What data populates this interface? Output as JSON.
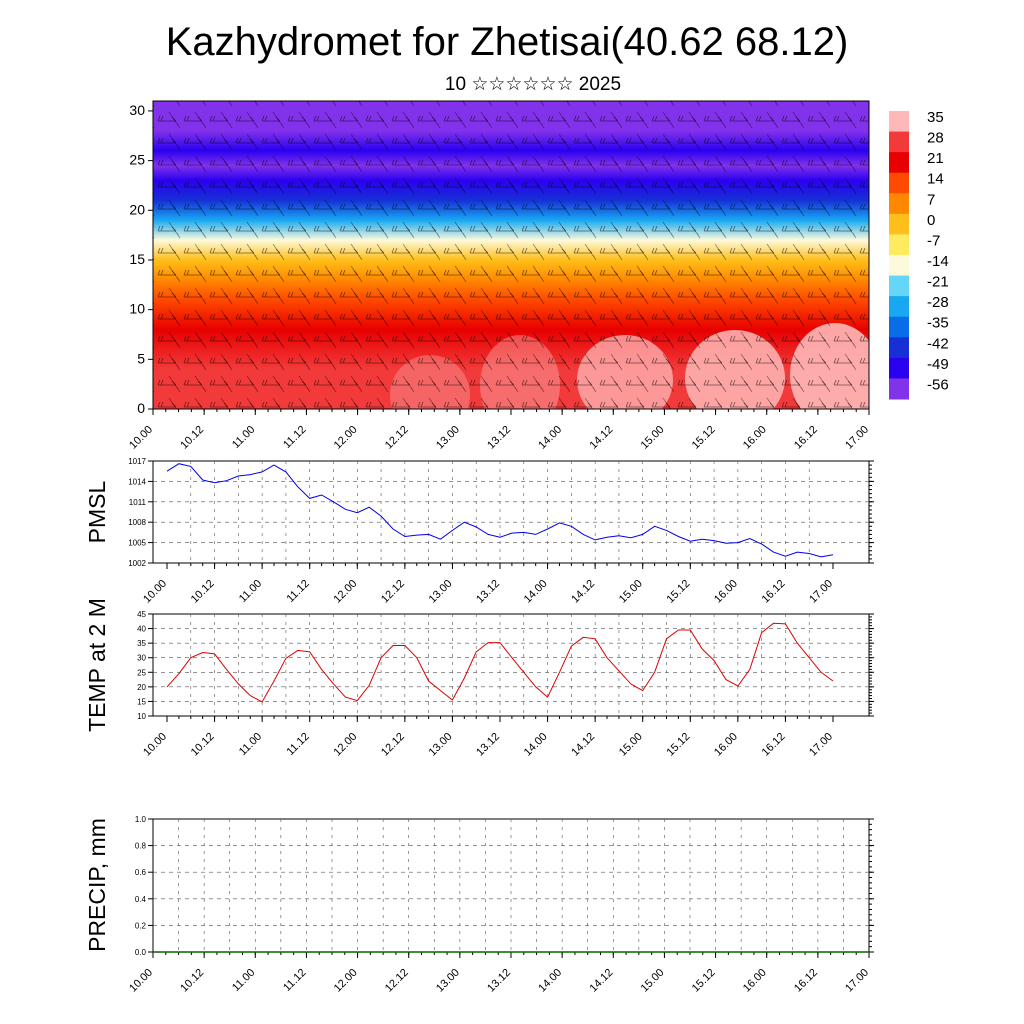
{
  "title": "Kazhydromet for Zhetisai(40.62 68.12)",
  "subtitle": "10 ☆☆☆☆☆☆ 2025",
  "colors": {
    "pmsl_line": "#0000ee",
    "temp_line": "#dd0000",
    "precip_line": "#006600",
    "grid": "#555555"
  },
  "time_ticks": [
    "10.00",
    "10.12",
    "11.00",
    "11.12",
    "12.00",
    "12.12",
    "13.00",
    "13.12",
    "14.00",
    "14.12",
    "15.00",
    "15.12",
    "16.00",
    "16.12",
    "17.00"
  ],
  "chart_data": [
    {
      "type": "heatmap",
      "name": "cross-section",
      "x_ticks": [
        "10.00",
        "10.12",
        "11.00",
        "11.12",
        "12.00",
        "12.12",
        "13.00",
        "13.12",
        "14.00",
        "14.12",
        "15.00",
        "15.12",
        "16.00",
        "16.12",
        "17.00"
      ],
      "y_ticks": [
        0,
        5,
        10,
        15,
        20,
        25,
        30
      ],
      "ylim": [
        0,
        31
      ],
      "colorbar_labels": [
        "35",
        "28",
        "21",
        "14",
        "7",
        "0",
        "-7",
        "-14",
        "-21",
        "-28",
        "-35",
        "-42",
        "-49",
        "-56"
      ],
      "colorbar_colors": [
        "#ffb8b8",
        "#f23a3a",
        "#e80000",
        "#ff4a00",
        "#ff8800",
        "#ffbf1a",
        "#ffea60",
        "#fdfadc",
        "#66d6f8",
        "#18a8f2",
        "#0a6de8",
        "#1630d6",
        "#2a00f0",
        "#8232ea"
      ],
      "temperature_profile": {
        "height": [
          0,
          4,
          8,
          11,
          13,
          15,
          17,
          19,
          21,
          23,
          24.5,
          26,
          28,
          31
        ],
        "value": [
          30,
          25,
          20,
          14,
          7,
          0,
          -12,
          -28,
          -40,
          -50,
          -56,
          -52,
          -60,
          -62
        ]
      }
    },
    {
      "type": "line",
      "name": "PMSL",
      "ylabel": "PMSL",
      "yticks": [
        1002,
        1005,
        1008,
        1011,
        1014,
        1017
      ],
      "ylim": [
        1002,
        1017
      ],
      "x": [
        0,
        3,
        6,
        9,
        12,
        15,
        18,
        21,
        24,
        27,
        30,
        33,
        36,
        39,
        42,
        45,
        48,
        51,
        54,
        57,
        60,
        63,
        66,
        69,
        72,
        75,
        78,
        81,
        84,
        87,
        90,
        93,
        96,
        99,
        102,
        105,
        108,
        111,
        114,
        117,
        120,
        123,
        126,
        129,
        132,
        135,
        138,
        141,
        144,
        147,
        150,
        153,
        156,
        159,
        162,
        165,
        168
      ],
      "series": [
        {
          "values": [
            1015.5,
            1016.6,
            1016.2,
            1014.2,
            1013.8,
            1014.1,
            1014.8,
            1015.0,
            1015.4,
            1016.4,
            1015.4,
            1013.2,
            1011.5,
            1012.0,
            1011.0,
            1009.9,
            1009.4,
            1010.2,
            1008.9,
            1007.0,
            1005.9,
            1006.1,
            1006.2,
            1005.5,
            1006.8,
            1008.0,
            1007.3,
            1006.2,
            1005.8,
            1006.4,
            1006.5,
            1006.2,
            1007.0,
            1007.9,
            1007.4,
            1006.2,
            1005.4,
            1005.8,
            1006.0,
            1005.7,
            1006.2,
            1007.4,
            1006.8,
            1005.9,
            1005.2,
            1005.5,
            1005.3,
            1004.9,
            1005.0,
            1005.6,
            1004.8,
            1003.6,
            1003.0,
            1003.6,
            1003.4,
            1002.9,
            1003.2
          ]
        }
      ]
    },
    {
      "type": "line",
      "name": "TEMP at 2 M",
      "ylabel": "TEMP at 2 M",
      "yticks": [
        10,
        15,
        20,
        25,
        30,
        35,
        40,
        45
      ],
      "ylim": [
        10,
        45
      ],
      "x": [
        0,
        3,
        6,
        9,
        12,
        15,
        18,
        21,
        24,
        27,
        30,
        33,
        36,
        39,
        42,
        45,
        48,
        51,
        54,
        57,
        60,
        63,
        66,
        69,
        72,
        75,
        78,
        81,
        84,
        87,
        90,
        93,
        96,
        99,
        102,
        105,
        108,
        111,
        114,
        117,
        120,
        123,
        126,
        129,
        132,
        135,
        138,
        141,
        144,
        147,
        150,
        153,
        156,
        159,
        162,
        165,
        168
      ],
      "series": [
        {
          "values": [
            20,
            24.5,
            30,
            31.8,
            31.3,
            26,
            21,
            17,
            14.8,
            22,
            29.8,
            32.5,
            32,
            26,
            21,
            16.5,
            15.3,
            20.5,
            30,
            34.2,
            34.2,
            30,
            22,
            18.7,
            15.5,
            23,
            32,
            35.2,
            35.2,
            30,
            25,
            20,
            16.5,
            25,
            34,
            37,
            36.5,
            30,
            25.5,
            21,
            18.7,
            25,
            36.5,
            39.5,
            39.5,
            33,
            29,
            22.5,
            20.3,
            26,
            38.6,
            41.8,
            41.6,
            35,
            30,
            25,
            22
          ]
        }
      ]
    },
    {
      "type": "line",
      "name": "PRECIP, mm",
      "ylabel": "PRECIP, mm",
      "yticks": [
        "0.0",
        "0.2",
        "0.4",
        "0.6",
        "0.8",
        "1.0"
      ],
      "ylim": [
        0,
        1
      ],
      "x": [
        0,
        168
      ],
      "series": [
        {
          "values": [
            0,
            0
          ]
        }
      ]
    }
  ]
}
